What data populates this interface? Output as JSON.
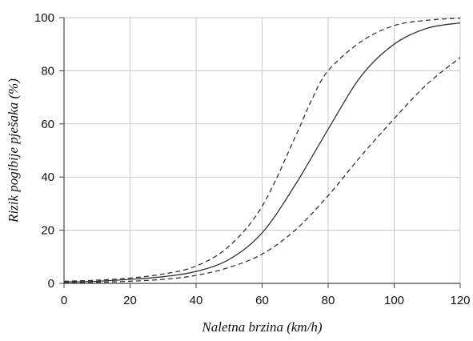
{
  "chart_data": {
    "type": "line",
    "title": "",
    "xlabel": "Naletna brzina (km/h)",
    "ylabel": "Rizik pogibije pješaka (%)",
    "xlim": [
      0,
      120
    ],
    "ylim": [
      0,
      100
    ],
    "x_ticks": [
      "0",
      "20",
      "40",
      "60",
      "80",
      "100",
      "120"
    ],
    "y_ticks": [
      "0",
      "20",
      "40",
      "60",
      "80",
      "100"
    ],
    "grid": true,
    "legend": "none",
    "series": [
      {
        "style": "solid",
        "color": "#333333",
        "x": [
          0,
          10,
          20,
          30,
          40,
          50,
          60,
          70,
          80,
          90,
          100,
          110,
          120
        ],
        "y": [
          0.5,
          0.8,
          1.5,
          2.5,
          4.5,
          9,
          19,
          37,
          58,
          78,
          90,
          96,
          98
        ]
      },
      {
        "style": "dashed",
        "color": "#333333",
        "x": [
          0,
          10,
          20,
          30,
          40,
          50,
          60,
          70,
          75,
          80,
          90,
          100,
          110,
          120
        ],
        "y": [
          0.8,
          1.2,
          2,
          3.5,
          6.5,
          14,
          29,
          55,
          69,
          80,
          91,
          97,
          99,
          99.8
        ]
      },
      {
        "style": "dashed",
        "color": "#333333",
        "x": [
          0,
          10,
          20,
          30,
          40,
          50,
          60,
          70,
          80,
          90,
          100,
          110,
          120
        ],
        "y": [
          0.3,
          0.4,
          0.8,
          1.5,
          3,
          6,
          11,
          20,
          33,
          48,
          62,
          75,
          85
        ]
      }
    ]
  }
}
